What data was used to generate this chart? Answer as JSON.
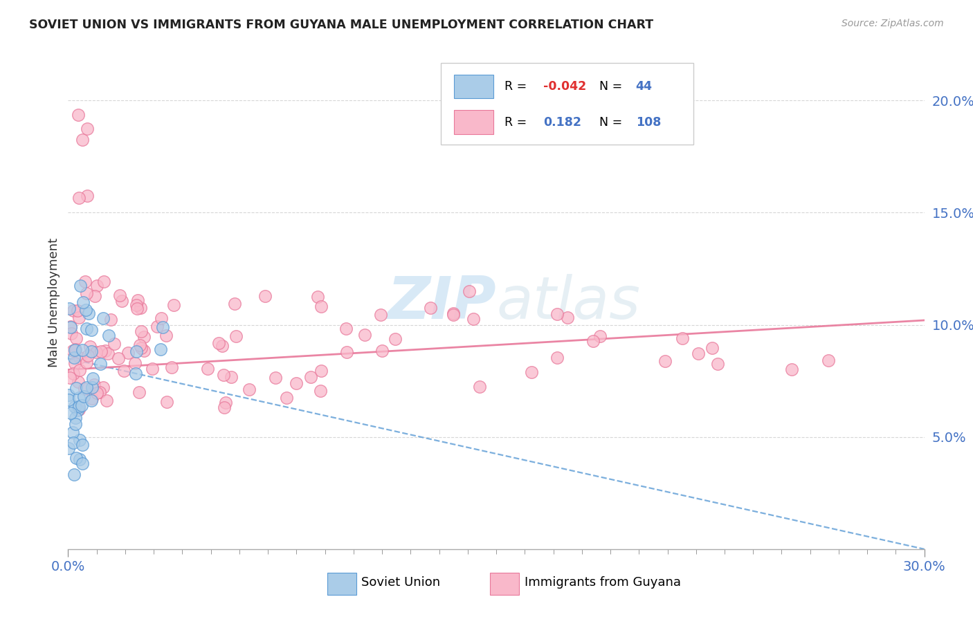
{
  "title": "SOVIET UNION VS IMMIGRANTS FROM GUYANA MALE UNEMPLOYMENT CORRELATION CHART",
  "source": "Source: ZipAtlas.com",
  "ylabel": "Male Unemployment",
  "xlim": [
    0.0,
    0.3
  ],
  "ylim": [
    0.0,
    0.22
  ],
  "xtick_positions": [
    0.0,
    0.3
  ],
  "xtick_labels": [
    "0.0%",
    "30.0%"
  ],
  "ytick_positions": [
    0.05,
    0.1,
    0.15,
    0.2
  ],
  "ytick_labels": [
    "5.0%",
    "10.0%",
    "15.0%",
    "20.0%"
  ],
  "soviet_color": "#aacce8",
  "soviet_edge": "#5b9bd5",
  "guyana_color": "#f9b8ca",
  "guyana_edge": "#e8789a",
  "trend_soviet_color": "#5b9bd5",
  "trend_guyana_color": "#e8789a",
  "legend_r1_color": "#e05050",
  "legend_r2_color": "#e05050",
  "legend_n_color": "#4472c4",
  "watermark_color": "#d0e8f5",
  "soviet_trend_x": [
    0.0,
    0.3
  ],
  "soviet_trend_y": [
    0.085,
    0.0
  ],
  "guyana_trend_x": [
    0.0,
    0.3
  ],
  "guyana_trend_y": [
    0.08,
    0.102
  ]
}
